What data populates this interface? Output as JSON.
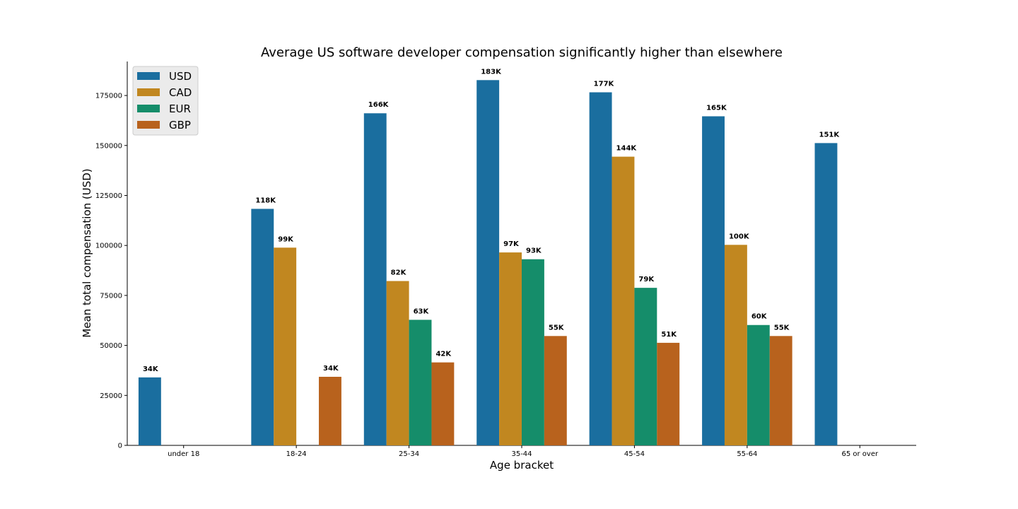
{
  "chart_data": {
    "type": "bar",
    "title": "Average US software developer compensation significantly higher than elsewhere",
    "xlabel": "Age bracket",
    "ylabel": "Mean total compensation (USD)",
    "ylim": [
      0,
      192000
    ],
    "yticks": [
      0,
      25000,
      50000,
      75000,
      100000,
      125000,
      150000,
      175000
    ],
    "ytick_labels": [
      "0",
      "25000",
      "50000",
      "75000",
      "100000",
      "125000",
      "150000",
      "175000"
    ],
    "grid": false,
    "legend_position": "top-left",
    "categories": [
      "under 18",
      "18-24",
      "25-34",
      "35-44",
      "45-54",
      "55-64",
      "65 or over"
    ],
    "series": [
      {
        "name": "USD",
        "color": "#1a6e9f",
        "values": [
          34000,
          118300,
          166100,
          182700,
          176600,
          164600,
          151200
        ],
        "labels": [
          "34K",
          "118K",
          "166K",
          "183K",
          "177K",
          "165K",
          "151K"
        ]
      },
      {
        "name": "CAD",
        "color": "#c18720",
        "values": [
          null,
          98900,
          82200,
          96500,
          144400,
          100300,
          null
        ],
        "labels": [
          "",
          "99K",
          "82K",
          "97K",
          "144K",
          "100K",
          ""
        ]
      },
      {
        "name": "EUR",
        "color": "#158d6a",
        "values": [
          null,
          null,
          62800,
          93100,
          78800,
          60200,
          null
        ],
        "labels": [
          "",
          "",
          "63K",
          "93K",
          "79K",
          "60K",
          ""
        ]
      },
      {
        "name": "GBP",
        "color": "#b8621d",
        "values": [
          null,
          34300,
          41500,
          54700,
          51300,
          54700,
          null
        ],
        "labels": [
          "",
          "34K",
          "42K",
          "55K",
          "51K",
          "55K",
          ""
        ]
      }
    ]
  }
}
